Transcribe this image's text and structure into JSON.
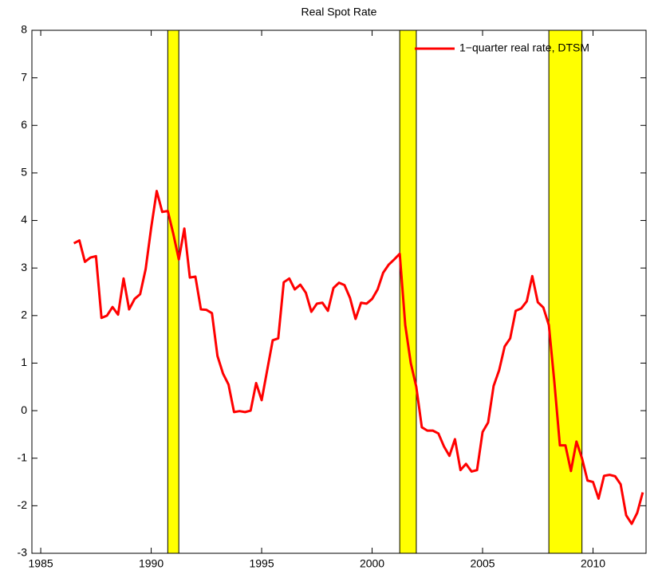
{
  "chart_data": {
    "type": "line",
    "title": "Real Spot Rate",
    "x": [
      1986.5,
      1986.75,
      1987,
      1987.25,
      1987.5,
      1987.75,
      1988,
      1988.25,
      1988.5,
      1988.75,
      1989,
      1989.25,
      1989.5,
      1989.75,
      1990,
      1990.25,
      1990.5,
      1990.75,
      1991,
      1991.25,
      1991.5,
      1991.75,
      1992,
      1992.25,
      1992.5,
      1992.75,
      1993,
      1993.25,
      1993.5,
      1993.75,
      1994,
      1994.25,
      1994.5,
      1994.75,
      1995,
      1995.25,
      1995.5,
      1995.75,
      1996,
      1996.25,
      1996.5,
      1996.75,
      1997,
      1997.25,
      1997.5,
      1997.75,
      1998,
      1998.25,
      1998.5,
      1998.75,
      1999,
      1999.25,
      1999.5,
      1999.75,
      2000,
      2000.25,
      2000.5,
      2000.75,
      2001,
      2001.25,
      2001.5,
      2001.75,
      2002,
      2002.25,
      2002.5,
      2002.75,
      2003,
      2003.25,
      2003.5,
      2003.75,
      2004,
      2004.25,
      2004.5,
      2004.75,
      2005,
      2005.25,
      2005.5,
      2005.75,
      2006,
      2006.25,
      2006.5,
      2006.75,
      2007,
      2007.25,
      2007.5,
      2007.75,
      2008,
      2008.25,
      2008.5,
      2008.75,
      2009,
      2009.25,
      2009.5,
      2009.75,
      2010,
      2010.25,
      2010.5,
      2010.75,
      2011,
      2011.25,
      2011.5,
      2011.75,
      2012,
      2012.25
    ],
    "series": [
      {
        "name": "1−quarter real rate, DTSM",
        "color": "#ff0000",
        "values": [
          3.52,
          3.58,
          3.13,
          3.22,
          3.25,
          1.95,
          2.0,
          2.18,
          2.02,
          2.78,
          2.13,
          2.35,
          2.45,
          2.98,
          3.85,
          4.62,
          4.18,
          4.2,
          3.72,
          3.18,
          3.83,
          2.8,
          2.82,
          2.13,
          2.12,
          2.05,
          1.15,
          0.78,
          0.55,
          -0.03,
          -0.01,
          -0.03,
          0.0,
          0.58,
          0.22,
          0.85,
          1.48,
          1.52,
          2.7,
          2.78,
          2.55,
          2.65,
          2.48,
          2.08,
          2.25,
          2.27,
          2.1,
          2.58,
          2.69,
          2.64,
          2.37,
          1.93,
          2.27,
          2.25,
          2.35,
          2.55,
          2.9,
          3.07,
          3.18,
          3.3,
          1.8,
          1.0,
          0.5,
          -0.35,
          -0.42,
          -0.42,
          -0.48,
          -0.75,
          -0.95,
          -0.6,
          -1.25,
          -1.12,
          -1.28,
          -1.25,
          -0.45,
          -0.25,
          0.52,
          0.85,
          1.35,
          1.52,
          2.1,
          2.15,
          2.3,
          2.83,
          2.28,
          2.17,
          1.8,
          0.6,
          -0.73,
          -0.73,
          -1.27,
          -0.65,
          -1.0,
          -1.47,
          -1.5,
          -1.85,
          -1.37,
          -1.35,
          -1.38,
          -1.55,
          -2.2,
          -2.38,
          -2.15,
          -1.72
        ]
      }
    ],
    "shaded_regions": [
      [
        1990.75,
        1991.25
      ],
      [
        2001.25,
        2002.0
      ],
      [
        2008.0,
        2009.5
      ]
    ],
    "shade_color": "#ffff00",
    "xlim": [
      1984.6,
      2012.4
    ],
    "xticks": [
      1985,
      1990,
      1995,
      2000,
      2005,
      2010
    ],
    "ylim": [
      -3,
      8
    ],
    "yticks": [
      -3,
      -2,
      -1,
      0,
      1,
      2,
      3,
      4,
      5,
      6,
      7,
      8
    ],
    "grid": false,
    "legend_position": "upper-right"
  }
}
